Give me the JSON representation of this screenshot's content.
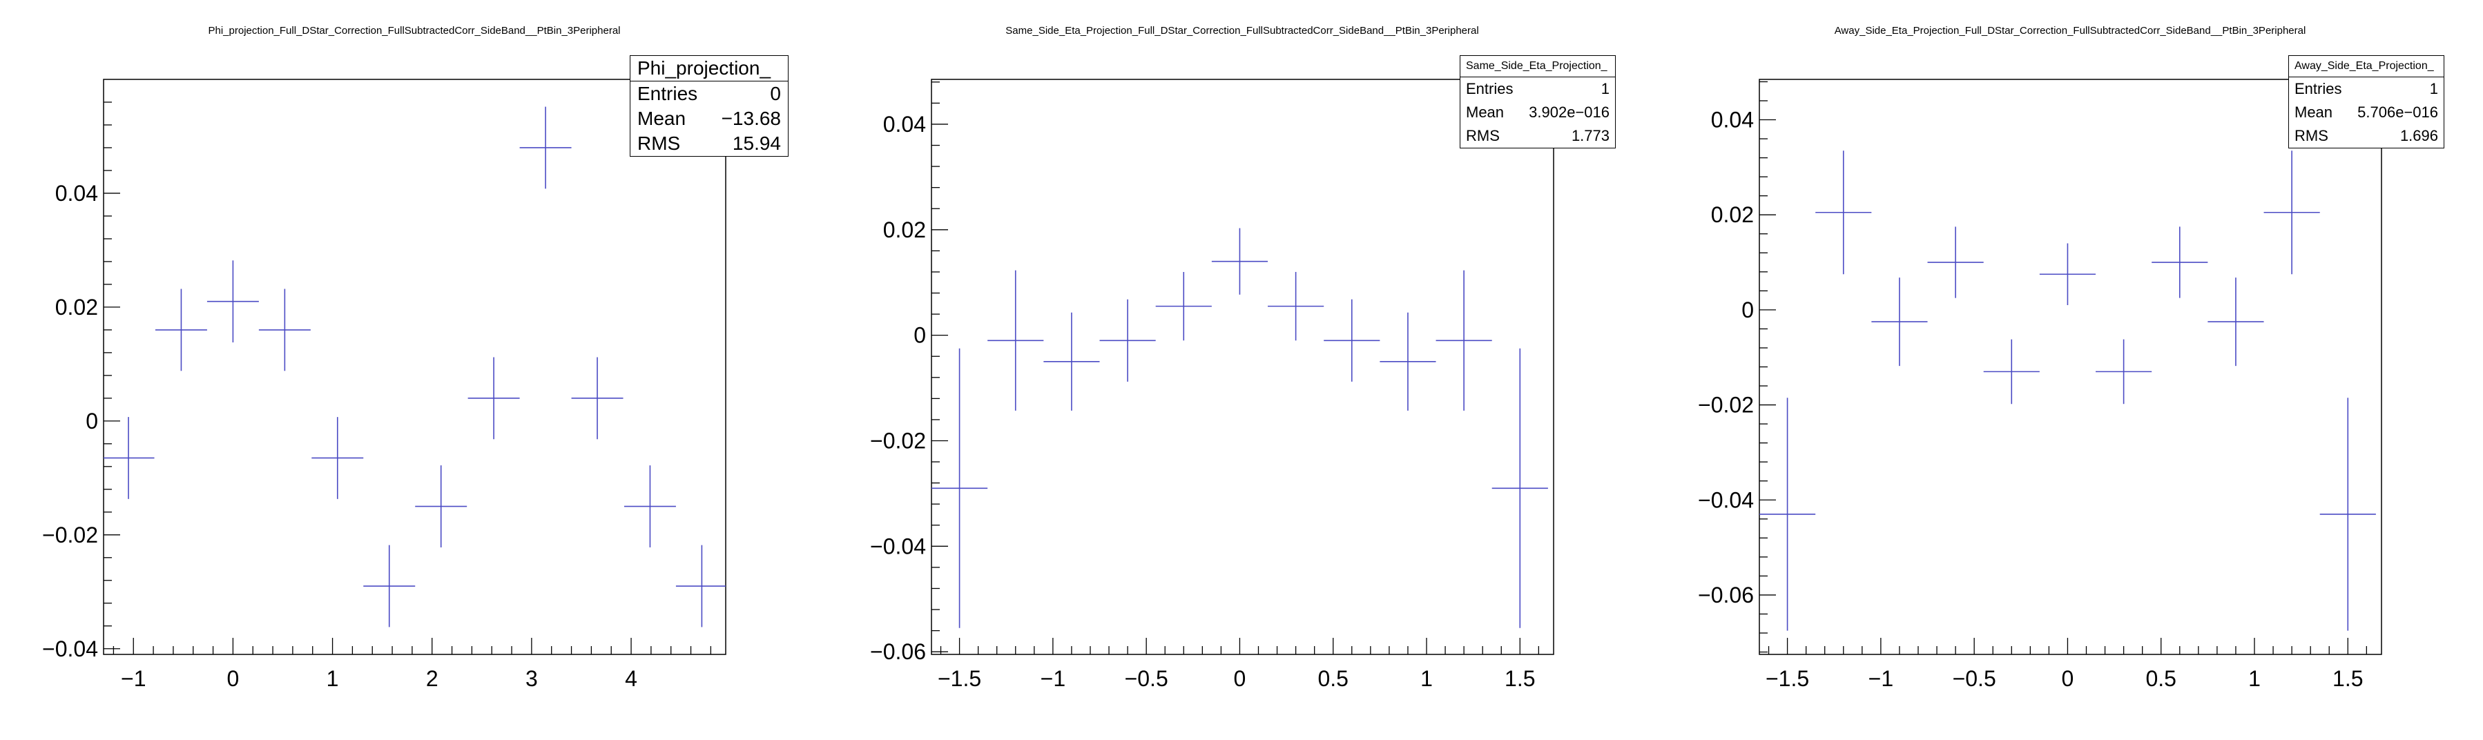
{
  "colors": {
    "marker": "#4b4bc4",
    "axis": "#000000"
  },
  "chart_data": [
    {
      "type": "scatter",
      "title": "Phi_projection_Full_DStar_Correction_FullSubtractedCorr_SideBand__PtBin_3Peripheral",
      "stats": {
        "name": "Phi_projection_",
        "rows": [
          {
            "k": "Entries",
            "v": "0"
          },
          {
            "k": "Mean",
            "v": "−13.68"
          },
          {
            "k": "RMS",
            "v": "15.94"
          }
        ]
      },
      "xlim": [
        -1.3,
        4.95
      ],
      "ylim": [
        -0.041,
        0.06
      ],
      "xticks": [
        -1,
        0,
        1,
        2,
        3,
        4
      ],
      "xtick_labels": [
        "−1",
        "0",
        "1",
        "2",
        "3",
        "4"
      ],
      "yticks": [
        -0.04,
        -0.02,
        0,
        0.02,
        0.04
      ],
      "ytick_labels": [
        "−0.04",
        "−0.02",
        "0",
        "0.02",
        "0.04"
      ],
      "xminor": 0.2,
      "yminor": 0.004,
      "half_width": 0.26,
      "points": [
        {
          "x": -1.05,
          "y": -0.0065,
          "err": 0.0072
        },
        {
          "x": -0.52,
          "y": 0.016,
          "err": 0.0072
        },
        {
          "x": 0.0,
          "y": 0.021,
          "err": 0.0072
        },
        {
          "x": 0.52,
          "y": 0.016,
          "err": 0.0072
        },
        {
          "x": 1.05,
          "y": -0.0065,
          "err": 0.0072
        },
        {
          "x": 1.57,
          "y": -0.029,
          "err": 0.0072
        },
        {
          "x": 2.09,
          "y": -0.015,
          "err": 0.0072
        },
        {
          "x": 2.62,
          "y": 0.004,
          "err": 0.0072
        },
        {
          "x": 3.14,
          "y": 0.048,
          "err": 0.0072
        },
        {
          "x": 3.66,
          "y": 0.004,
          "err": 0.0072
        },
        {
          "x": 4.19,
          "y": -0.015,
          "err": 0.0072
        },
        {
          "x": 4.71,
          "y": -0.029,
          "err": 0.0072
        }
      ]
    },
    {
      "type": "scatter",
      "title": "Same_Side_Eta_Projection_Full_DStar_Correction_FullSubtractedCorr_SideBand__PtBin_3Peripheral",
      "stats": {
        "name": "Same_Side_Eta_Projection_",
        "rows": [
          {
            "k": "Entries",
            "v": "1"
          },
          {
            "k": "Mean",
            "v": "3.902e−016"
          },
          {
            "k": "RMS",
            "v": "1.773"
          }
        ]
      },
      "xlim": [
        -1.65,
        1.68
      ],
      "ylim": [
        -0.0605,
        0.0485
      ],
      "xticks": [
        -1.5,
        -1,
        -0.5,
        0,
        0.5,
        1,
        1.5
      ],
      "xtick_labels": [
        "−1.5",
        "−1",
        "−0.5",
        "0",
        "0.5",
        "1",
        "1.5"
      ],
      "yticks": [
        -0.06,
        -0.04,
        -0.02,
        0,
        0.02,
        0.04
      ],
      "ytick_labels": [
        "−0.06",
        "−0.04",
        "−0.02",
        "0",
        "0.02",
        "0.04"
      ],
      "xminor": 0.1,
      "yminor": 0.004,
      "half_width": 0.15,
      "points": [
        {
          "x": -1.5,
          "y": -0.029,
          "err": 0.0265
        },
        {
          "x": -1.2,
          "y": -0.001,
          "err": 0.0133
        },
        {
          "x": -0.9,
          "y": -0.005,
          "err": 0.0093
        },
        {
          "x": -0.6,
          "y": -0.001,
          "err": 0.0078
        },
        {
          "x": -0.3,
          "y": 0.0055,
          "err": 0.0065
        },
        {
          "x": 0.0,
          "y": 0.014,
          "err": 0.0063
        },
        {
          "x": 0.3,
          "y": 0.0055,
          "err": 0.0065
        },
        {
          "x": 0.6,
          "y": -0.001,
          "err": 0.0078
        },
        {
          "x": 0.9,
          "y": -0.005,
          "err": 0.0093
        },
        {
          "x": 1.2,
          "y": -0.001,
          "err": 0.0133
        },
        {
          "x": 1.5,
          "y": -0.029,
          "err": 0.0265
        }
      ]
    },
    {
      "type": "scatter",
      "title": "Away_Side_Eta_Projection_Full_DStar_Correction_FullSubtractedCorr_SideBand__PtBin_3Peripheral",
      "stats": {
        "name": "Away_Side_Eta_Projection_",
        "rows": [
          {
            "k": "Entries",
            "v": "1"
          },
          {
            "k": "Mean",
            "v": "5.706e−016"
          },
          {
            "k": "RMS",
            "v": "1.696"
          }
        ]
      },
      "xlim": [
        -1.65,
        1.68
      ],
      "ylim": [
        -0.0725,
        0.0485
      ],
      "xticks": [
        -1.5,
        -1,
        -0.5,
        0,
        0.5,
        1,
        1.5
      ],
      "xtick_labels": [
        "−1.5",
        "−1",
        "−0.5",
        "0",
        "0.5",
        "1",
        "1.5"
      ],
      "yticks": [
        -0.06,
        -0.04,
        -0.02,
        0,
        0.02,
        0.04
      ],
      "ytick_labels": [
        "−0.06",
        "−0.04",
        "−0.02",
        "0",
        "0.02",
        "0.04"
      ],
      "xminor": 0.1,
      "yminor": 0.004,
      "half_width": 0.15,
      "points": [
        {
          "x": -1.5,
          "y": -0.043,
          "err": 0.0245
        },
        {
          "x": -1.2,
          "y": 0.0205,
          "err": 0.013
        },
        {
          "x": -0.9,
          "y": -0.0025,
          "err": 0.0093
        },
        {
          "x": -0.6,
          "y": 0.01,
          "err": 0.0075
        },
        {
          "x": -0.3,
          "y": -0.013,
          "err": 0.0068
        },
        {
          "x": 0.0,
          "y": 0.0075,
          "err": 0.0065
        },
        {
          "x": 0.3,
          "y": -0.013,
          "err": 0.0068
        },
        {
          "x": 0.6,
          "y": 0.01,
          "err": 0.0075
        },
        {
          "x": 0.9,
          "y": -0.0025,
          "err": 0.0093
        },
        {
          "x": 1.2,
          "y": 0.0205,
          "err": 0.013
        },
        {
          "x": 1.5,
          "y": -0.043,
          "err": 0.0245
        }
      ]
    }
  ]
}
